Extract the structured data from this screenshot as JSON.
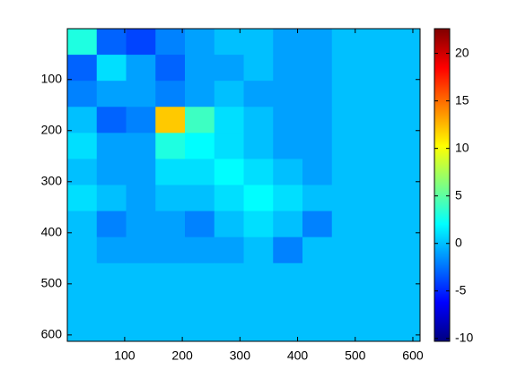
{
  "chart_data": {
    "type": "heatmap",
    "colormap": "jet",
    "x": [
      26,
      77,
      128,
      179,
      230,
      281,
      332,
      383,
      434,
      485,
      536,
      587
    ],
    "y": [
      26,
      77,
      128,
      179,
      230,
      281,
      332,
      383,
      434,
      485,
      536,
      587
    ],
    "values": [
      [
        3,
        -3,
        -4,
        -2,
        -1,
        0,
        0,
        -1,
        -1,
        0,
        0,
        0
      ],
      [
        -3,
        1,
        -1,
        -3,
        -1,
        -1,
        0,
        -1,
        -1,
        0,
        0,
        0
      ],
      [
        -2,
        -1,
        -1,
        -2,
        -1,
        0,
        -1,
        -1,
        -1,
        0,
        0,
        0
      ],
      [
        0,
        -3,
        -2,
        12,
        4,
        1,
        0,
        -1,
        -1,
        0,
        0,
        0
      ],
      [
        1,
        -1,
        -1,
        3,
        2,
        1,
        0,
        -1,
        -1,
        0,
        0,
        0
      ],
      [
        0,
        -1,
        -1,
        1,
        1,
        2,
        1,
        0,
        -1,
        0,
        0,
        0
      ],
      [
        1,
        0,
        -1,
        0,
        0,
        1,
        2,
        1,
        0,
        0,
        0,
        0
      ],
      [
        0,
        -2,
        -1,
        -1,
        -2,
        0,
        1,
        0,
        -2,
        0,
        0,
        0
      ],
      [
        0,
        -1,
        -1,
        -1,
        -1,
        -1,
        0,
        -2,
        0,
        0,
        0,
        0
      ],
      [
        0,
        0,
        0,
        0,
        0,
        0,
        0,
        0,
        0,
        0,
        0,
        0
      ],
      [
        0,
        0,
        0,
        0,
        0,
        0,
        0,
        0,
        0,
        0,
        0,
        0
      ],
      [
        0,
        0,
        0,
        0,
        0,
        0,
        0,
        0,
        0,
        0,
        0,
        0
      ]
    ],
    "xlim": [
      0.5,
      612.5
    ],
    "ylim": [
      0.5,
      612.5
    ],
    "xticks": [
      100,
      200,
      300,
      400,
      500,
      600
    ],
    "yticks": [
      100,
      200,
      300,
      400,
      500,
      600
    ],
    "clim": [
      -10.3,
      22.6
    ],
    "cticks": [
      -10,
      -5,
      0,
      5,
      10,
      15,
      20
    ],
    "colorbar": true
  }
}
